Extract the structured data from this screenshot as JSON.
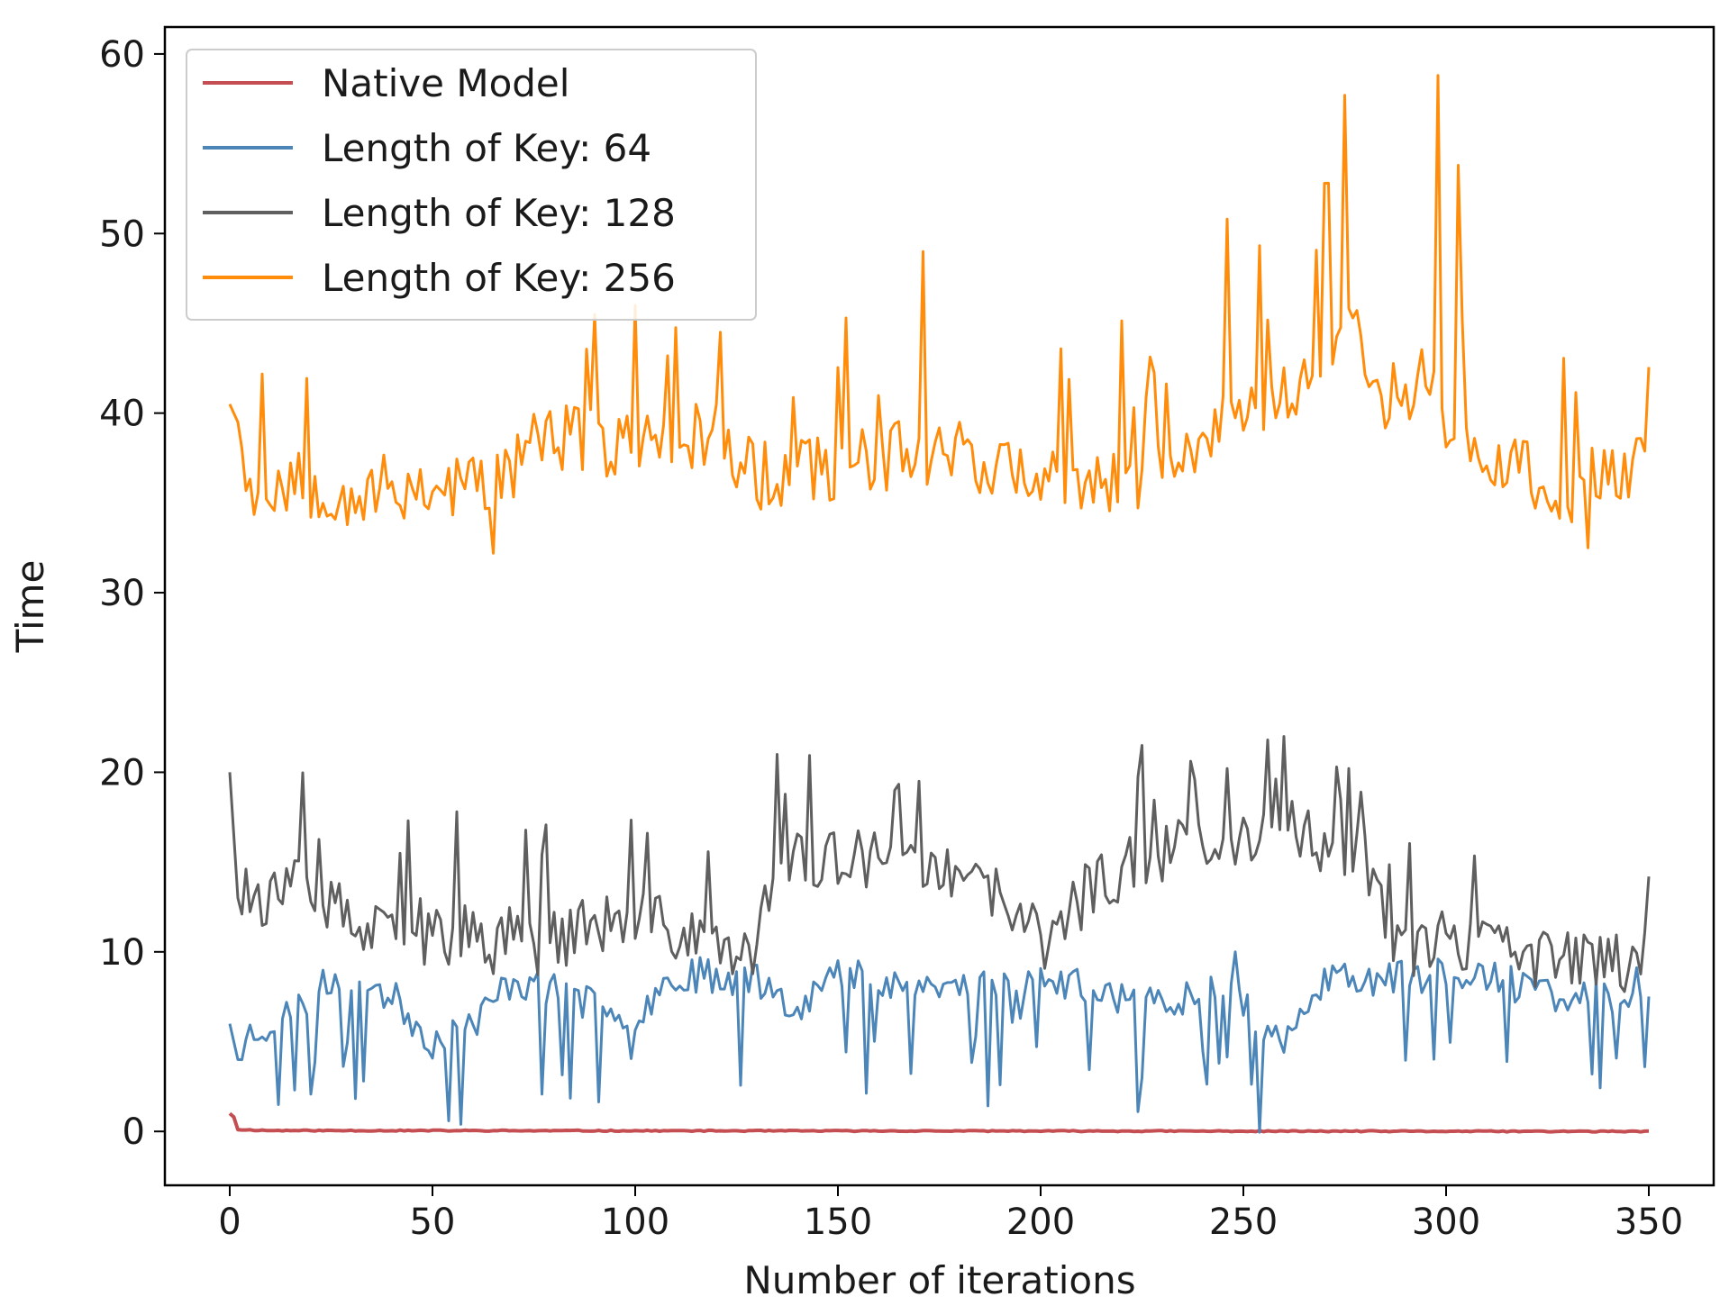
{
  "chart_data": {
    "type": "line",
    "title": "",
    "xlabel": "Number of iterations",
    "ylabel": "Time",
    "xlim": [
      -16,
      366
    ],
    "ylim": [
      -3,
      61.5
    ],
    "xticks": [
      0,
      50,
      100,
      150,
      200,
      250,
      300,
      350
    ],
    "yticks": [
      0,
      10,
      20,
      30,
      40,
      50,
      60
    ],
    "grid": false,
    "legend_position": "top-left",
    "series": [
      {
        "name": "Native Model",
        "color": "#c44e52",
        "keypoints": [
          [
            0,
            1.0
          ],
          [
            1,
            0.8
          ],
          [
            2,
            0.1
          ],
          [
            10,
            0.05
          ],
          [
            350,
            0.0
          ]
        ],
        "noise": 0.03,
        "spike_rate": 0.0,
        "spike_size": 0.0,
        "seed": 11
      },
      {
        "name": "Length of Key: 64",
        "color": "#4c86b9",
        "keypoints": [
          [
            0,
            6.0
          ],
          [
            2,
            4.0
          ],
          [
            5,
            5.5
          ],
          [
            15,
            6.5
          ],
          [
            28,
            9.0
          ],
          [
            40,
            7.5
          ],
          [
            50,
            5.0
          ],
          [
            60,
            6.0
          ],
          [
            70,
            8.5
          ],
          [
            90,
            7.0
          ],
          [
            100,
            6.5
          ],
          [
            110,
            8.8
          ],
          [
            130,
            8.5
          ],
          [
            140,
            7.0
          ],
          [
            150,
            8.8
          ],
          [
            160,
            8.5
          ],
          [
            175,
            8.0
          ],
          [
            200,
            8.5
          ],
          [
            220,
            7.5
          ],
          [
            230,
            7.0
          ],
          [
            245,
            8.5
          ],
          [
            255,
            6.0
          ],
          [
            262,
            5.0
          ],
          [
            270,
            8.5
          ],
          [
            290,
            8.5
          ],
          [
            300,
            9.0
          ],
          [
            310,
            8.5
          ],
          [
            330,
            7.5
          ],
          [
            340,
            7.5
          ],
          [
            350,
            8.4
          ]
        ],
        "noise": 1.0,
        "spike_rate": 0.1,
        "spike_size": -4.5,
        "seed": 23
      },
      {
        "name": "Length of Key: 128",
        "color": "#5f5f5f",
        "keypoints": [
          [
            0,
            20.0
          ],
          [
            2,
            13.0
          ],
          [
            10,
            13.0
          ],
          [
            20,
            13.5
          ],
          [
            30,
            11.5
          ],
          [
            40,
            10.5
          ],
          [
            55,
            11.0
          ],
          [
            70,
            10.0
          ],
          [
            90,
            11.5
          ],
          [
            105,
            11.5
          ],
          [
            120,
            10.5
          ],
          [
            130,
            10.5
          ],
          [
            135,
            15.0
          ],
          [
            145,
            15.0
          ],
          [
            155,
            15.0
          ],
          [
            170,
            14.5
          ],
          [
            190,
            13.0
          ],
          [
            200,
            10.5
          ],
          [
            210,
            13.0
          ],
          [
            225,
            15.5
          ],
          [
            240,
            16.0
          ],
          [
            255,
            17.0
          ],
          [
            265,
            16.5
          ],
          [
            275,
            15.5
          ],
          [
            283,
            14.5
          ],
          [
            287,
            10.0
          ],
          [
            300,
            10.5
          ],
          [
            315,
            10.0
          ],
          [
            330,
            9.5
          ],
          [
            345,
            9.5
          ],
          [
            350,
            10.8
          ]
        ],
        "noise": 1.8,
        "spike_rate": 0.07,
        "spike_size": 4.5,
        "seed": 37
      },
      {
        "name": "Length of Key: 256",
        "color": "#ff8c0a",
        "keypoints": [
          [
            0,
            40.5
          ],
          [
            3,
            39.0
          ],
          [
            5,
            35.5
          ],
          [
            15,
            36.5
          ],
          [
            30,
            35.5
          ],
          [
            50,
            36.0
          ],
          [
            65,
            36.0
          ],
          [
            75,
            38.5
          ],
          [
            90,
            38.5
          ],
          [
            100,
            38.0
          ],
          [
            120,
            39.0
          ],
          [
            130,
            36.5
          ],
          [
            150,
            37.0
          ],
          [
            170,
            38.0
          ],
          [
            180,
            38.0
          ],
          [
            200,
            36.0
          ],
          [
            220,
            36.0
          ],
          [
            235,
            37.0
          ],
          [
            245,
            40.0
          ],
          [
            255,
            41.0
          ],
          [
            265,
            42.0
          ],
          [
            275,
            45.0
          ],
          [
            285,
            41.0
          ],
          [
            295,
            42.0
          ],
          [
            305,
            38.0
          ],
          [
            320,
            36.5
          ],
          [
            335,
            35.5
          ],
          [
            350,
            37.5
          ]
        ],
        "noise": 2.0,
        "spike_rate": 0.08,
        "spike_size": 5.5,
        "seed": 53
      }
    ],
    "peaks": [
      {
        "series": 3,
        "x": 90,
        "y": 45.5
      },
      {
        "series": 3,
        "x": 100,
        "y": 46.0
      },
      {
        "series": 3,
        "x": 121,
        "y": 44.5
      },
      {
        "series": 3,
        "x": 152,
        "y": 45.3
      },
      {
        "series": 3,
        "x": 171,
        "y": 49.0
      },
      {
        "series": 3,
        "x": 246,
        "y": 50.8
      },
      {
        "series": 3,
        "x": 270,
        "y": 52.8
      },
      {
        "series": 3,
        "x": 275,
        "y": 57.7
      },
      {
        "series": 3,
        "x": 298,
        "y": 58.8
      },
      {
        "series": 3,
        "x": 303,
        "y": 53.8
      },
      {
        "series": 3,
        "x": 65,
        "y": 32.2
      },
      {
        "series": 3,
        "x": 335,
        "y": 32.5
      },
      {
        "series": 2,
        "x": 135,
        "y": 21.0
      },
      {
        "series": 2,
        "x": 225,
        "y": 21.5
      },
      {
        "series": 2,
        "x": 260,
        "y": 22.0
      },
      {
        "series": 2,
        "x": 256,
        "y": 21.8
      },
      {
        "series": 2,
        "x": 170,
        "y": 19.5
      },
      {
        "series": 2,
        "x": 44,
        "y": 17.3
      },
      {
        "series": 2,
        "x": 56,
        "y": 17.8
      },
      {
        "series": 1,
        "x": 225,
        "y": 3.0
      },
      {
        "series": 1,
        "x": 336,
        "y": 3.2
      },
      {
        "series": 1,
        "x": 248,
        "y": 10.0
      }
    ]
  }
}
